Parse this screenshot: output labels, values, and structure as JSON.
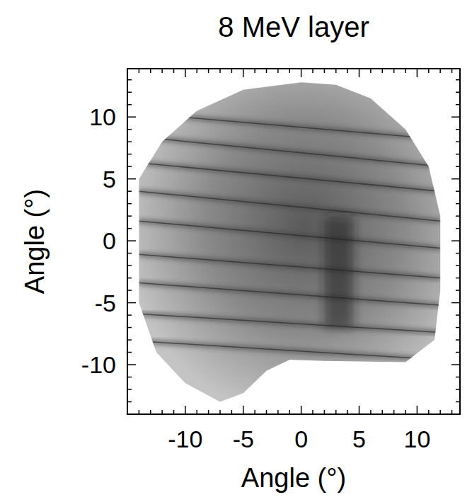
{
  "chart_data": {
    "type": "image",
    "title": "8 MeV layer",
    "x_label": "Angle (°)",
    "y_label": "Angle (°)",
    "xlim": [
      -15,
      13.7
    ],
    "ylim": [
      -14,
      13.9
    ],
    "xticks": [
      -10,
      -5,
      0,
      5,
      10
    ],
    "yticks": [
      -10,
      -5,
      0,
      5,
      10
    ],
    "xminor_ticks": [
      -14,
      -13,
      -12,
      -11,
      -9,
      -8,
      -7,
      -6,
      -4,
      -3,
      -2,
      -1,
      1,
      2,
      3,
      4,
      6,
      7,
      8,
      9,
      11,
      12,
      13
    ],
    "yminor_ticks": [
      -13,
      -12,
      -11,
      -9,
      -8,
      -7,
      -6,
      -4,
      -3,
      -2,
      -1,
      1,
      2,
      3,
      4,
      6,
      7,
      8,
      9,
      11,
      12,
      13
    ],
    "footprint": {
      "x": [
        -14,
        -12,
        -9,
        -5,
        0,
        3,
        6,
        9,
        11,
        12,
        12,
        11.5,
        9,
        2,
        -1,
        -3,
        -5,
        -7,
        -10,
        -12.5,
        -14
      ],
      "y": [
        5,
        8,
        10.5,
        12.2,
        12.8,
        12.6,
        11.5,
        9,
        6,
        2,
        -4,
        -8,
        -9.8,
        -9.7,
        -9.6,
        -10.5,
        -12.3,
        -13,
        -11.5,
        -9,
        -5
      ]
    },
    "stripes": [
      {
        "x": [
          -14,
          12
        ],
        "y": [
          10.3,
          8.2
        ]
      },
      {
        "x": [
          -14,
          12
        ],
        "y": [
          8.4,
          6.0
        ]
      },
      {
        "x": [
          -14,
          12
        ],
        "y": [
          6.3,
          4.0
        ]
      },
      {
        "x": [
          -14,
          12
        ],
        "y": [
          4.0,
          1.6
        ]
      },
      {
        "x": [
          -14,
          12
        ],
        "y": [
          1.6,
          -0.6
        ]
      },
      {
        "x": [
          -14,
          12
        ],
        "y": [
          -1.1,
          -3.0
        ]
      },
      {
        "x": [
          -14,
          12
        ],
        "y": [
          -3.4,
          -5.2
        ]
      },
      {
        "x": [
          -14,
          12
        ],
        "y": [
          -5.9,
          -7.4
        ]
      },
      {
        "x": [
          -14,
          12
        ],
        "y": [
          -8.1,
          -9.6
        ]
      }
    ],
    "dark_band": {
      "x": [
        2,
        4.5
      ],
      "y": [
        -7,
        2
      ]
    },
    "color": "#3a3a3a",
    "grid": false
  }
}
